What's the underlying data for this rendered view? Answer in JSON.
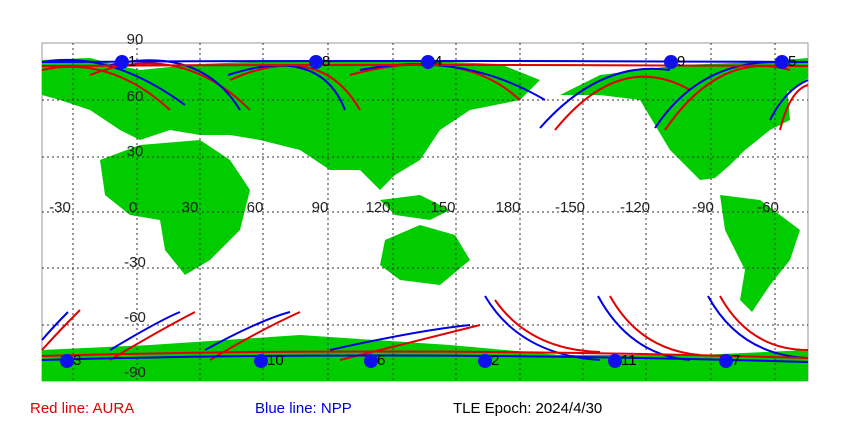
{
  "lon_labels": [
    "-30",
    "0",
    "30",
    "60",
    "90",
    "120",
    "150",
    "180",
    "-150",
    "-120",
    "-90",
    "-60"
  ],
  "lat_labels": [
    "90",
    "60",
    "30",
    "-30",
    "-60",
    "-90"
  ],
  "satellites": [
    "1",
    "8",
    "4",
    "9",
    "5",
    "3",
    "10",
    "6",
    "2",
    "11",
    "7"
  ],
  "legend": {
    "aura": "Red line: AURA",
    "npp": "Blue line: NPP",
    "epoch": "TLE Epoch: 2024/4/30"
  }
}
